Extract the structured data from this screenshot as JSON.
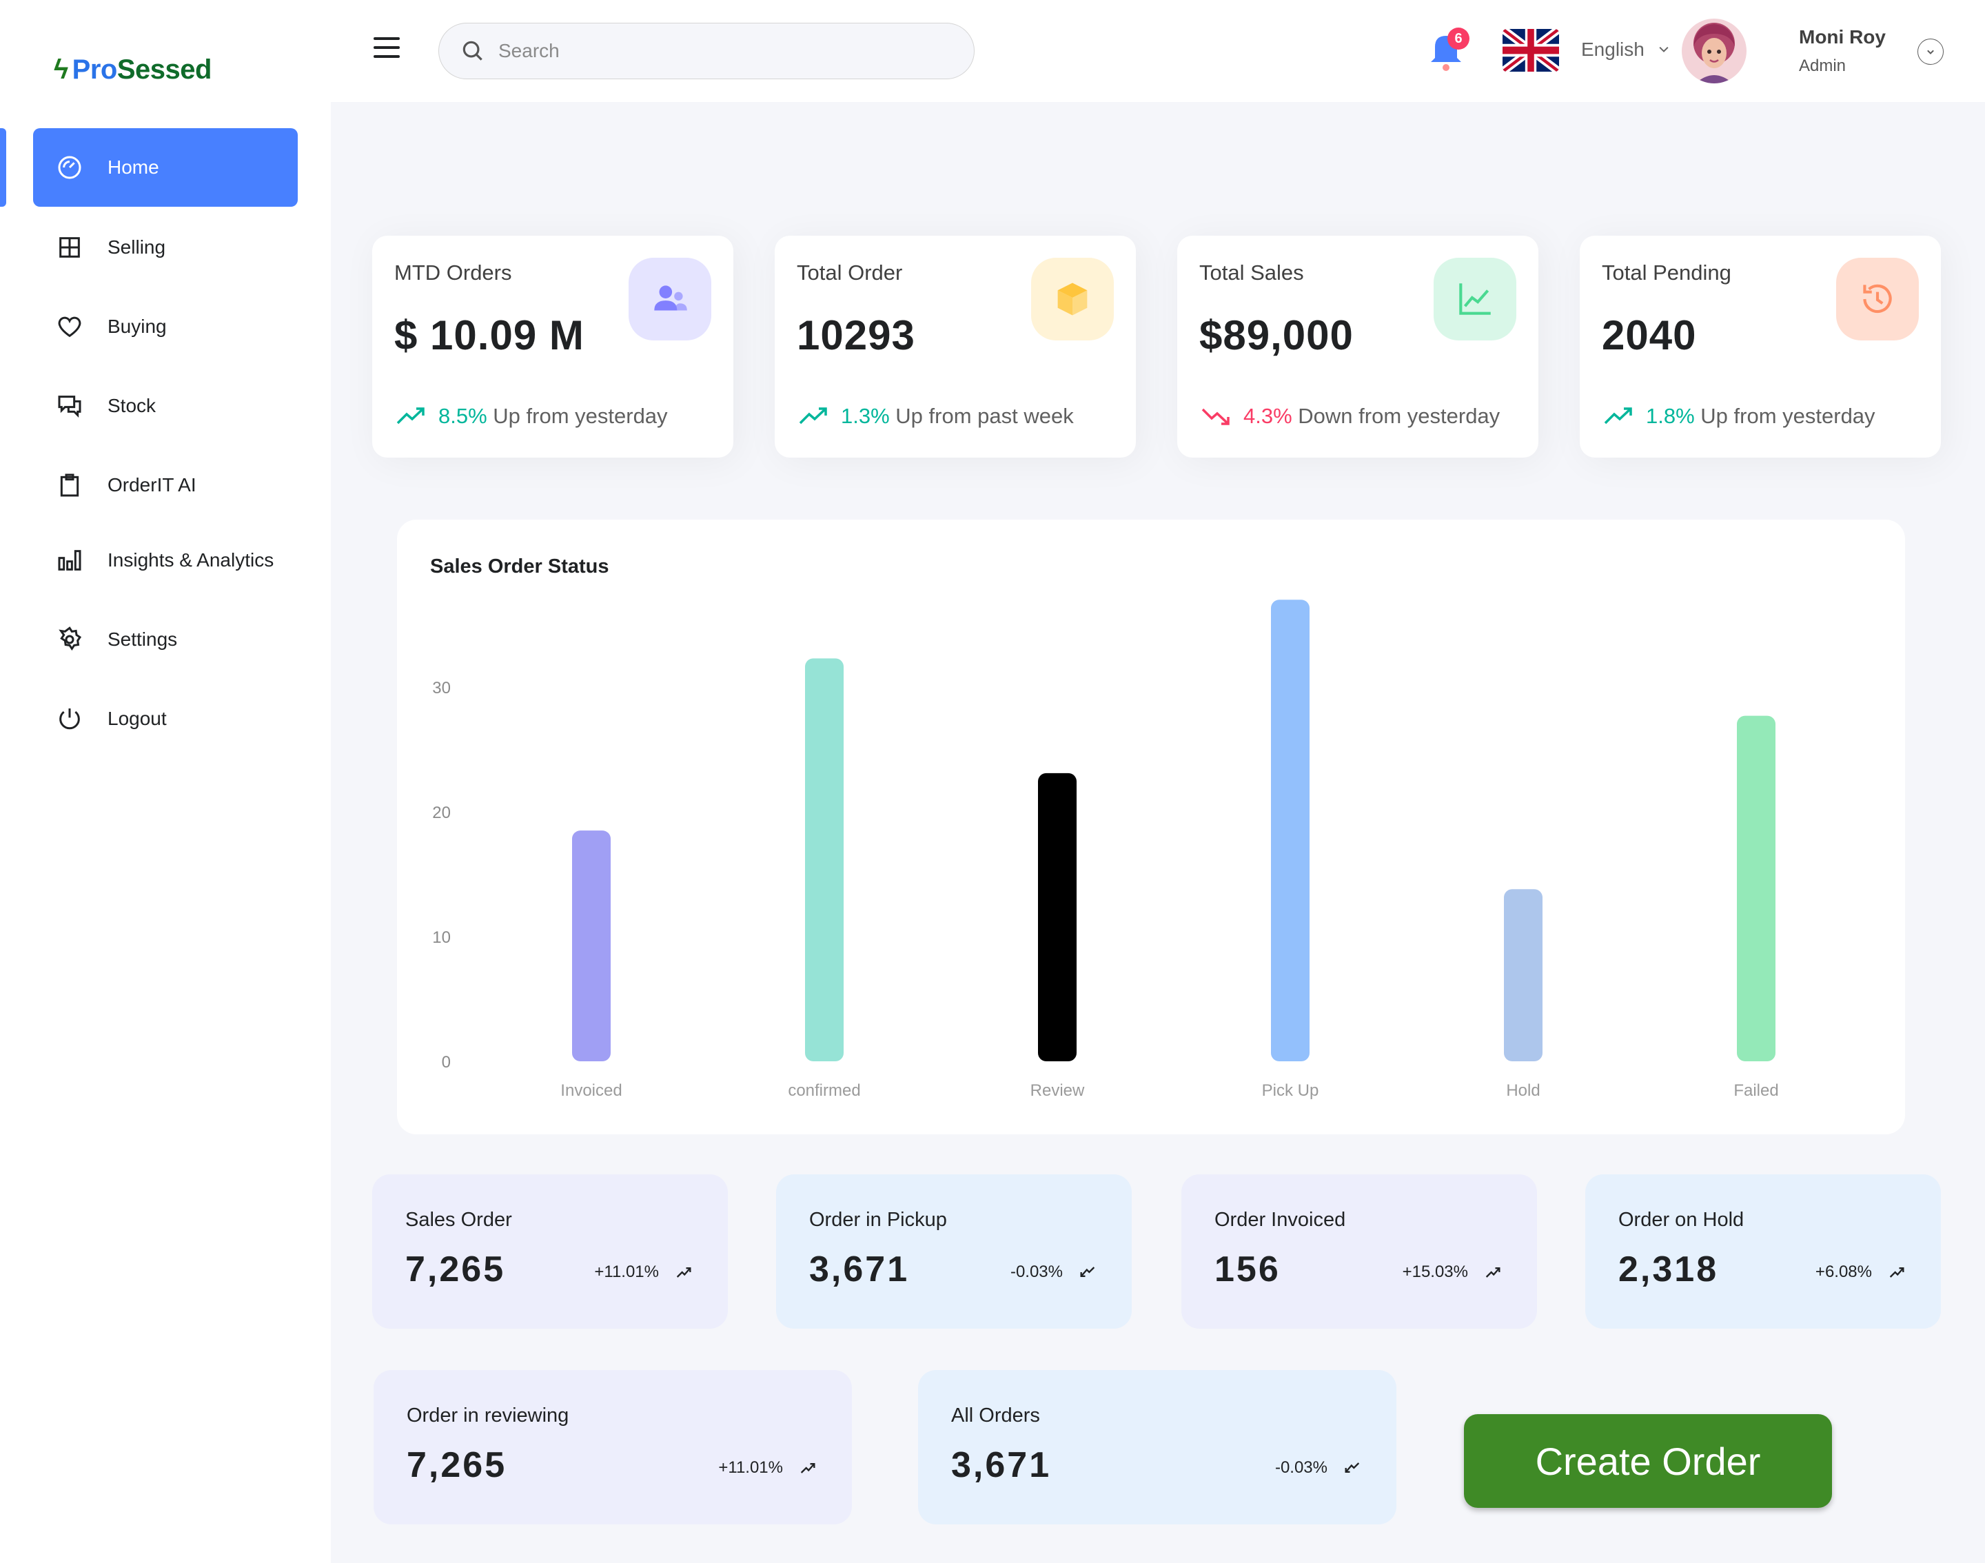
{
  "brand": {
    "bolt": "ϟ",
    "part1": "Pro",
    "part2": "Sessed"
  },
  "sidebar": {
    "items": [
      {
        "label": "Home",
        "icon": "dashboard-gauge-icon",
        "active": true
      },
      {
        "label": "Selling",
        "icon": "grid-icon"
      },
      {
        "label": "Buying",
        "icon": "heart-icon"
      },
      {
        "label": "Stock",
        "icon": "chat-icon"
      },
      {
        "label": "OrderIT AI",
        "icon": "clipboard-icon"
      },
      {
        "label": "Insights & Analytics",
        "icon": "bar-chart-icon"
      },
      {
        "label": "Settings",
        "icon": "gear-icon"
      },
      {
        "label": "Logout",
        "icon": "power-icon"
      }
    ]
  },
  "header": {
    "search_placeholder": "Search",
    "notifications_count": "6",
    "language": "English",
    "user_name": "Moni Roy",
    "user_role": "Admin"
  },
  "stats": [
    {
      "title": "MTD Orders",
      "value": "$ 10.09 M",
      "change": "8.5%",
      "change_text": "Up from yesterday",
      "direction": "up",
      "icon": "users-icon",
      "icon_bg": "#e5e4ff",
      "icon_color": "#8280ff"
    },
    {
      "title": "Total Order",
      "value": "10293",
      "change": "1.3%",
      "change_text": "Up from past week",
      "direction": "up",
      "icon": "cube-icon",
      "icon_bg": "#fff3d6",
      "icon_color": "#fec53d"
    },
    {
      "title": "Total Sales",
      "value": "$89,000",
      "change": "4.3%",
      "change_text": "Down from yesterday",
      "direction": "down",
      "icon": "line-chart-icon",
      "icon_bg": "#d9f7e8",
      "icon_color": "#4ad991"
    },
    {
      "title": "Total Pending",
      "value": "2040",
      "change": "1.8%",
      "change_text": "Up from yesterday",
      "direction": "up",
      "icon": "history-icon",
      "icon_bg": "#ffded1",
      "icon_color": "#ff9066"
    }
  ],
  "chart_data": {
    "type": "bar",
    "title": "Sales Order Status",
    "xlabel": "",
    "ylabel": "",
    "categories": [
      "Invoiced",
      "confirmed",
      "Review",
      "Pick Up",
      "Hold",
      "Failed"
    ],
    "values": [
      18.5,
      32.3,
      23.1,
      37,
      13.8,
      27.7
    ],
    "colors": [
      "#a09ff4",
      "#96e3d6",
      "#000000",
      "#93c0fc",
      "#adc6ec",
      "#94e9b8"
    ],
    "yticks": [
      0,
      10,
      20,
      30
    ],
    "ylim": [
      0,
      37
    ],
    "grid": false
  },
  "mini_stats": [
    {
      "title": "Sales Order",
      "value": "7,265",
      "change": "+11.01%",
      "direction": "up",
      "bg": "#edeefc"
    },
    {
      "title": "Order in Pickup",
      "value": "3,671",
      "change": "-0.03%",
      "direction": "down",
      "bg": "#e6f1fd"
    },
    {
      "title": "Order Invoiced",
      "value": "156",
      "change": "+15.03%",
      "direction": "up",
      "bg": "#edeefc"
    },
    {
      "title": "Order on Hold",
      "value": "2,318",
      "change": "+6.08%",
      "direction": "up",
      "bg": "#e6f1fd"
    },
    {
      "title": "Order in reviewing",
      "value": "7,265",
      "change": "+11.01%",
      "direction": "up",
      "bg": "#edeefc"
    },
    {
      "title": "All Orders",
      "value": "3,671",
      "change": "-0.03%",
      "direction": "down",
      "bg": "#e6f1fd"
    }
  ],
  "actions": {
    "create_order": "Create Order"
  }
}
